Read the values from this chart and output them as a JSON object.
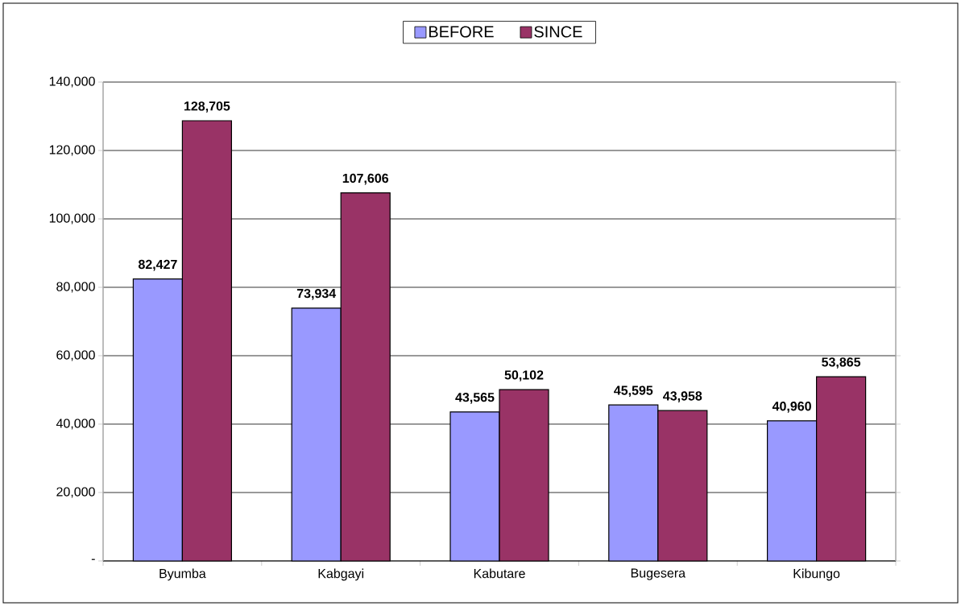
{
  "chart_data": {
    "type": "bar",
    "categories": [
      "Byumba",
      "Kabgayi",
      "Kabutare",
      "Bugesera",
      "Kibungo"
    ],
    "series": [
      {
        "name": "BEFORE",
        "color": "#9999ff",
        "values": [
          82427,
          73934,
          43565,
          45595,
          40960
        ],
        "value_labels": [
          "82,427",
          "73,934",
          "43,565",
          "45,595",
          "40,960"
        ]
      },
      {
        "name": "SINCE",
        "color": "#993366",
        "values": [
          128705,
          107606,
          50102,
          43958,
          53865
        ],
        "value_labels": [
          "128,705",
          "107,606",
          "50,102",
          "43,958",
          "53,865"
        ]
      }
    ],
    "ylim": [
      0,
      140000
    ],
    "yticks": [
      {
        "value": 0,
        "label": "-"
      },
      {
        "value": 20000,
        "label": "20,000"
      },
      {
        "value": 40000,
        "label": "40,000"
      },
      {
        "value": 60000,
        "label": "60,000"
      },
      {
        "value": 80000,
        "label": "80,000"
      },
      {
        "value": 100000,
        "label": "100,000"
      },
      {
        "value": 120000,
        "label": "120,000"
      },
      {
        "value": 140000,
        "label": "140,000"
      }
    ],
    "grid": "y",
    "legend": "top"
  }
}
